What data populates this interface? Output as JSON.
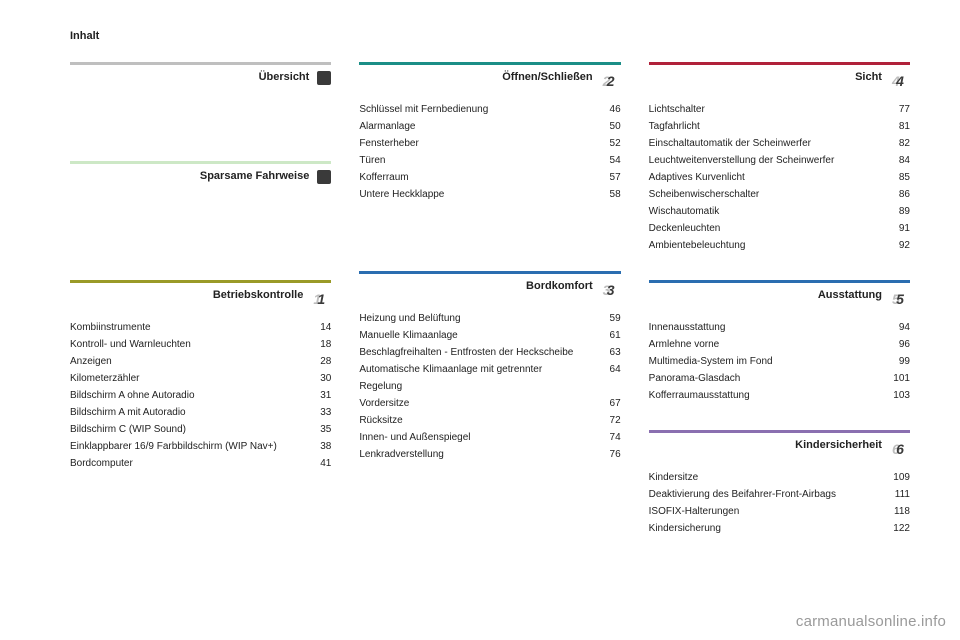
{
  "header": "Inhalt",
  "watermark": "carmanualsonline.info",
  "colors": {
    "grey": "#bfbfbf",
    "lightgreen": "#cde8c6",
    "olive": "#9a9a27",
    "teal": "#1b8e87",
    "blue": "#2a6db0",
    "crimson": "#b0213a",
    "violet": "#8a6fb0"
  },
  "sections": {
    "uebersicht": {
      "title": "Übersicht",
      "badge": "■",
      "color_key": "grey",
      "entries": []
    },
    "fahrweise": {
      "title": "Sparsame Fahrweise",
      "badge": "■",
      "color_key": "lightgreen",
      "entries": []
    },
    "betrieb": {
      "title": "Betriebskontrolle",
      "badge": "1",
      "color_key": "olive",
      "entries": [
        {
          "label": "Kombiinstrumente",
          "page": "14"
        },
        {
          "label": "Kontroll- und Warnleuchten",
          "page": "18"
        },
        {
          "label": "Anzeigen",
          "page": "28"
        },
        {
          "label": "Kilometerzähler",
          "page": "30"
        },
        {
          "label": "Bildschirm A ohne Autoradio",
          "page": "31"
        },
        {
          "label": "Bildschirm A mit Autoradio",
          "page": "33"
        },
        {
          "label": "Bildschirm C (WIP Sound)",
          "page": "35"
        },
        {
          "label": "Einklappbarer 16/9 Farbbildschirm (WIP Nav+)",
          "page": "38"
        },
        {
          "label": "Bordcomputer",
          "page": "41"
        }
      ]
    },
    "oeffnen": {
      "title": "Öffnen/Schließen",
      "badge": "2",
      "color_key": "teal",
      "entries": [
        {
          "label": "Schlüssel mit Fernbedienung",
          "page": "46"
        },
        {
          "label": "Alarmanlage",
          "page": "50"
        },
        {
          "label": "Fensterheber",
          "page": "52"
        },
        {
          "label": "Türen",
          "page": "54"
        },
        {
          "label": "Kofferraum",
          "page": "57"
        },
        {
          "label": "Untere Heckklappe",
          "page": "58"
        }
      ]
    },
    "bordkomfort": {
      "title": "Bordkomfort",
      "badge": "3",
      "color_key": "blue",
      "entries": [
        {
          "label": "Heizung und Belüftung",
          "page": "59"
        },
        {
          "label": "Manuelle Klimaanlage",
          "page": "61"
        },
        {
          "label": "Beschlagfreihalten - Entfrosten der Heckscheibe",
          "page": "63"
        },
        {
          "label": "Automatische Klimaanlage mit getrennter Regelung",
          "page": "64"
        },
        {
          "label": "Vordersitze",
          "page": "67"
        },
        {
          "label": "Rücksitze",
          "page": "72"
        },
        {
          "label": "Innen- und Außenspiegel",
          "page": "74"
        },
        {
          "label": "Lenkradverstellung",
          "page": "76"
        }
      ]
    },
    "sicht": {
      "title": "Sicht",
      "badge": "4",
      "color_key": "crimson",
      "entries": [
        {
          "label": "Lichtschalter",
          "page": "77"
        },
        {
          "label": "Tagfahrlicht",
          "page": "81"
        },
        {
          "label": "Einschaltautomatik der Scheinwerfer",
          "page": "82"
        },
        {
          "label": "Leuchtweitenverstellung der Scheinwerfer",
          "page": "84"
        },
        {
          "label": "Adaptives Kurvenlicht",
          "page": "85"
        },
        {
          "label": "Scheibenwischerschalter",
          "page": "86"
        },
        {
          "label": "Wischautomatik",
          "page": "89"
        },
        {
          "label": "Deckenleuchten",
          "page": "91"
        },
        {
          "label": "Ambientebeleuchtung",
          "page": "92"
        }
      ]
    },
    "ausstattung": {
      "title": "Ausstattung",
      "badge": "5",
      "color_key": "blue",
      "entries": [
        {
          "label": "Innenausstattung",
          "page": "94"
        },
        {
          "label": "Armlehne vorne",
          "page": "96"
        },
        {
          "label": "Multimedia-System im Fond",
          "page": "99"
        },
        {
          "label": "Panorama-Glasdach",
          "page": "101"
        },
        {
          "label": "Kofferraumausstattung",
          "page": "103"
        }
      ]
    },
    "kinder": {
      "title": "Kindersicherheit",
      "badge": "6",
      "color_key": "violet",
      "entries": [
        {
          "label": "Kindersitze",
          "page": "109"
        },
        {
          "label": "Deaktivierung des Beifahrer-Front-Airbags",
          "page": "111"
        },
        {
          "label": "ISOFIX-Halterungen",
          "page": "118"
        },
        {
          "label": "Kindersicherung",
          "page": "122"
        }
      ]
    }
  }
}
